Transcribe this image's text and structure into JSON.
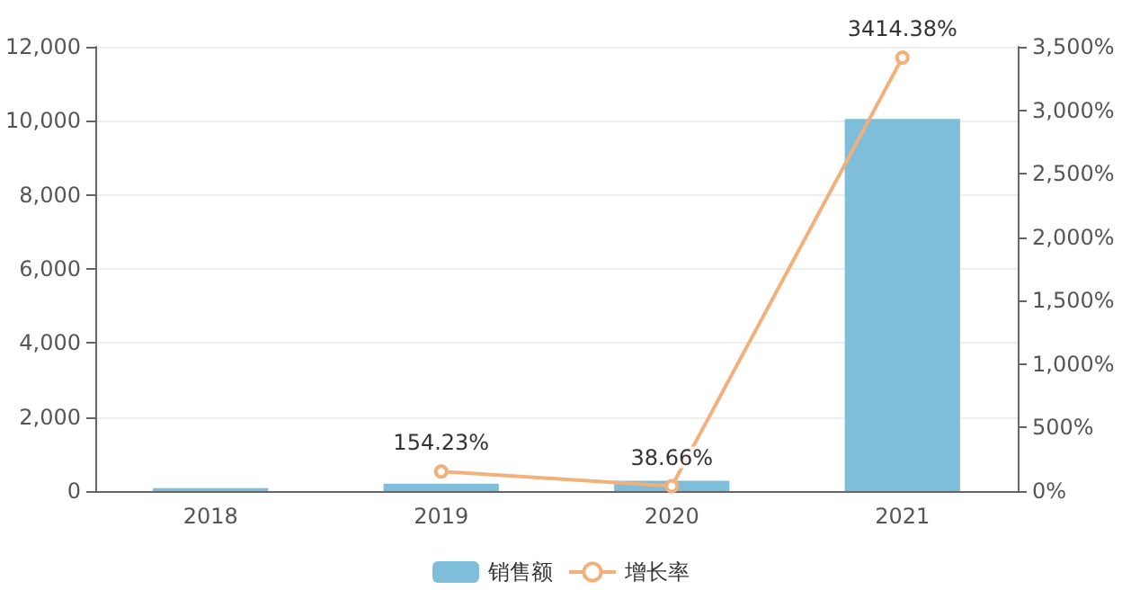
{
  "chart_data": {
    "type": "bar",
    "categories": [
      "2018",
      "2019",
      "2020",
      "2021"
    ],
    "series": [
      {
        "name": "销售额",
        "color": "#7ebedb",
        "values": [
          80,
          200,
          280,
          10050
        ]
      },
      {
        "name": "增长率",
        "type": "line",
        "axis": "y2",
        "color": "#f2b07a",
        "marker": "circle",
        "values": [
          null,
          154.23,
          38.66,
          3414.38
        ],
        "value_labels": [
          null,
          "154.23%",
          "38.66%",
          "3414.38%"
        ]
      }
    ],
    "ylim": [
      0,
      12000
    ],
    "yticks": [
      0,
      {
        "value": 2000,
        "label": "2,000"
      },
      {
        "value": 4000,
        "label": "4,000"
      },
      {
        "value": 6000,
        "label": "6,000"
      },
      {
        "value": 8000,
        "label": "8,000"
      },
      {
        "value": 10000,
        "label": "10,000"
      },
      {
        "value": 12000,
        "label": "12,000"
      }
    ],
    "y2lim": [
      0,
      3500
    ],
    "y2ticks": [
      {
        "value": 0,
        "label": "0%"
      },
      {
        "value": 500,
        "label": "500%"
      },
      {
        "value": 1000,
        "label": "1,000%"
      },
      {
        "value": 1500,
        "label": "1,500%"
      },
      {
        "value": 2000,
        "label": "2,000%"
      },
      {
        "value": 2500,
        "label": "2,500%"
      },
      {
        "value": 3000,
        "label": "3,000%"
      },
      {
        "value": 3500,
        "label": "3,500%"
      }
    ],
    "grid": "y",
    "legend": "bottom"
  }
}
